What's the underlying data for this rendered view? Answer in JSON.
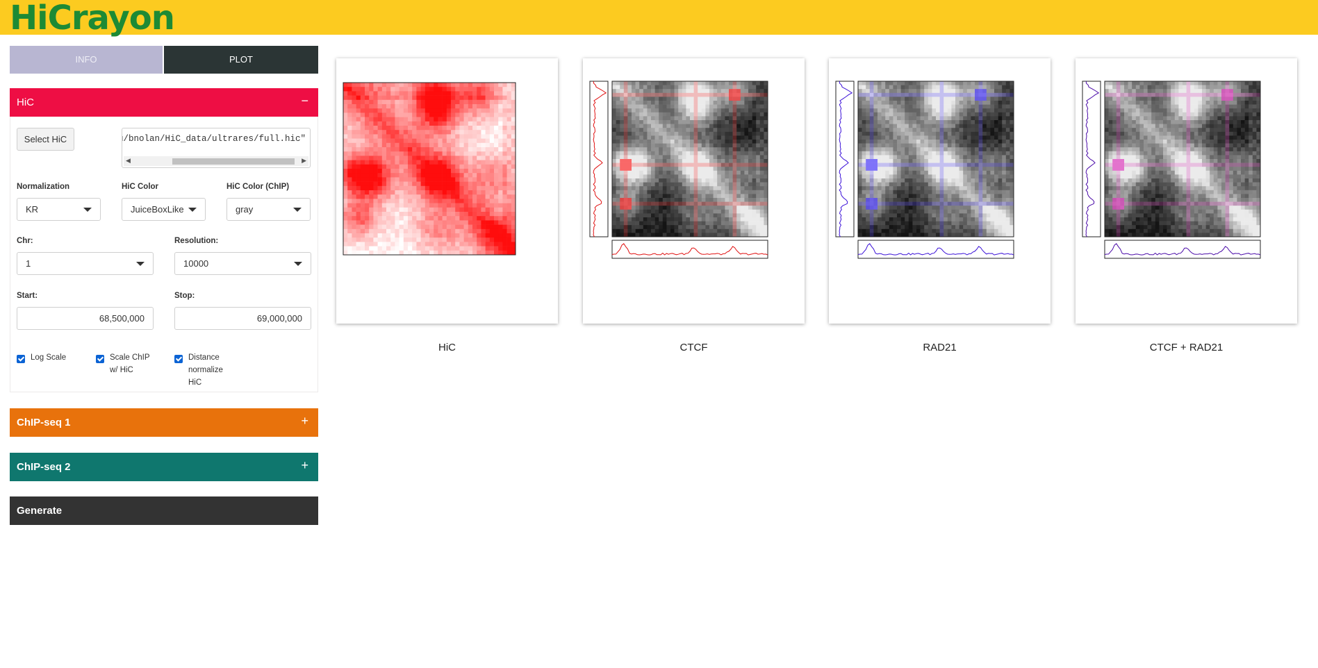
{
  "app": {
    "title": "HiCrayon"
  },
  "tabs": [
    {
      "label": "INFO"
    },
    {
      "label": "PLOT"
    }
  ],
  "hic_panel": {
    "title": "HiC",
    "toggle": "−",
    "select_button": "Select HiC",
    "file_path": "lu/bnolan/HiC_data/ultrares/full.hic\"",
    "normalization": {
      "label": "Normalization",
      "value": "KR"
    },
    "hic_color": {
      "label": "HiC Color",
      "value": "JuiceBoxLike"
    },
    "hic_color_chip": {
      "label": "HiC Color (ChIP)",
      "value": "gray"
    },
    "chr": {
      "label": "Chr:",
      "value": "1"
    },
    "resolution": {
      "label": "Resolution:",
      "value": "10000"
    },
    "start": {
      "label": "Start:",
      "value": "68,500,000"
    },
    "stop": {
      "label": "Stop:",
      "value": "69,000,000"
    },
    "log_scale": {
      "line1": "Log Scale",
      "checked": true
    },
    "scale_chip": {
      "line1": "Scale ChIP",
      "line2": "w/ HiC",
      "checked": true
    },
    "distance_normalize": {
      "line1": "Distance",
      "line2": "normalize",
      "line3": "HiC",
      "checked": true
    }
  },
  "chip1_panel": {
    "title": "ChIP-seq 1",
    "toggle": "+"
  },
  "chip2_panel": {
    "title": "ChIP-seq 2",
    "toggle": "+"
  },
  "generate": {
    "label": "Generate"
  },
  "plots": [
    {
      "caption": "HiC",
      "kind": "hic",
      "track_color": "#ff0000"
    },
    {
      "caption": "CTCF",
      "kind": "chip",
      "track_color": "#e01010",
      "tint": "#ff3030"
    },
    {
      "caption": "RAD21",
      "kind": "chip",
      "track_color": "#3a10d8",
      "tint": "#5040ff"
    },
    {
      "caption": "CTCF + RAD21",
      "kind": "chip",
      "track_color": "#4a0aa8",
      "tint": "#e040c0"
    }
  ],
  "colors": {
    "topbar": "#fccb20",
    "logo": "#1d8a35",
    "hic": "#ee0e44",
    "chip1": "#e8720c",
    "chip2": "#0f776e",
    "generate": "#333333"
  }
}
